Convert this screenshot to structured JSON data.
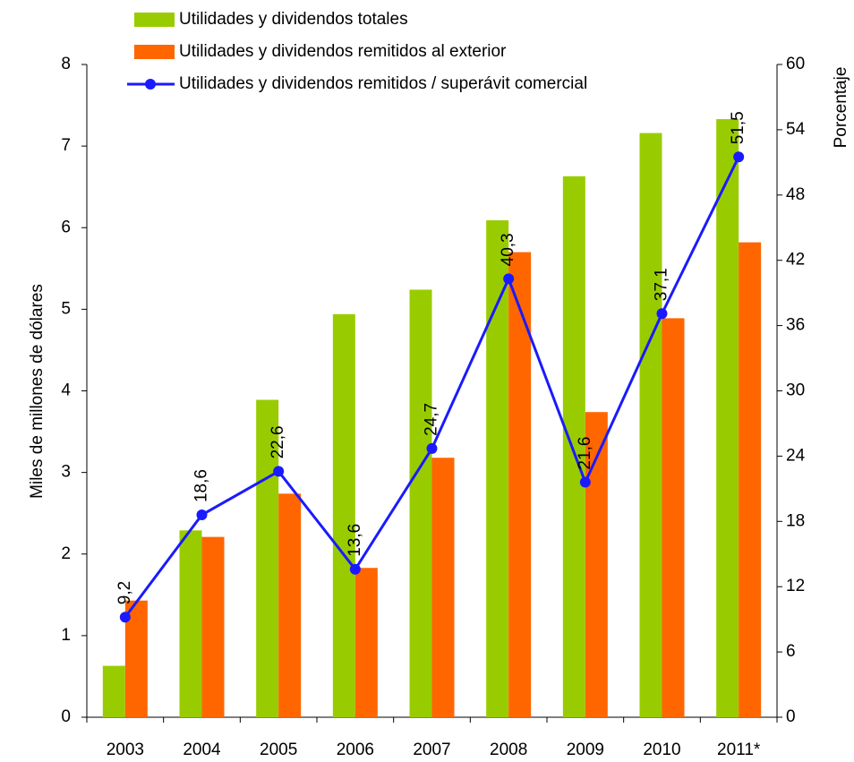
{
  "chart_data": {
    "type": "bar_line",
    "y_label": "Miles de millones de dólares",
    "y2_label": "Porcentaje",
    "categories": [
      "2003",
      "2004",
      "2005",
      "2006",
      "2007",
      "2008",
      "2009",
      "2010",
      "2011*"
    ],
    "series": [
      {
        "name": "Utilidades y dividendos totales",
        "type": "bar",
        "color": "#99cc00",
        "values": [
          0.63,
          2.29,
          3.89,
          4.94,
          5.24,
          6.09,
          6.63,
          7.16,
          7.33
        ]
      },
      {
        "name": "Utilidades y dividendos remitidos al exterior",
        "type": "bar",
        "color": "#ff6600",
        "values": [
          1.43,
          2.21,
          2.74,
          1.83,
          3.18,
          5.7,
          3.74,
          4.89,
          5.82
        ]
      },
      {
        "name": "Utilidades y dividendos remitidos / superávit comercial",
        "type": "line",
        "axis": "y2",
        "color": "#1a1aff",
        "values": [
          9.2,
          18.6,
          22.6,
          13.6,
          24.7,
          40.3,
          21.6,
          37.1,
          51.5
        ],
        "value_labels": [
          "9,2",
          "18,6",
          "22,6",
          "13,6",
          "24,7",
          "40,3",
          "21,6",
          "37,1",
          "51,5"
        ]
      }
    ],
    "ylim": [
      0,
      8
    ],
    "yticks": [
      0,
      1,
      2,
      3,
      4,
      5,
      6,
      7,
      8
    ],
    "y2lim": [
      0,
      60
    ],
    "y2ticks": [
      0,
      6,
      12,
      18,
      24,
      30,
      36,
      42,
      48,
      54,
      60
    ],
    "grid": false
  }
}
